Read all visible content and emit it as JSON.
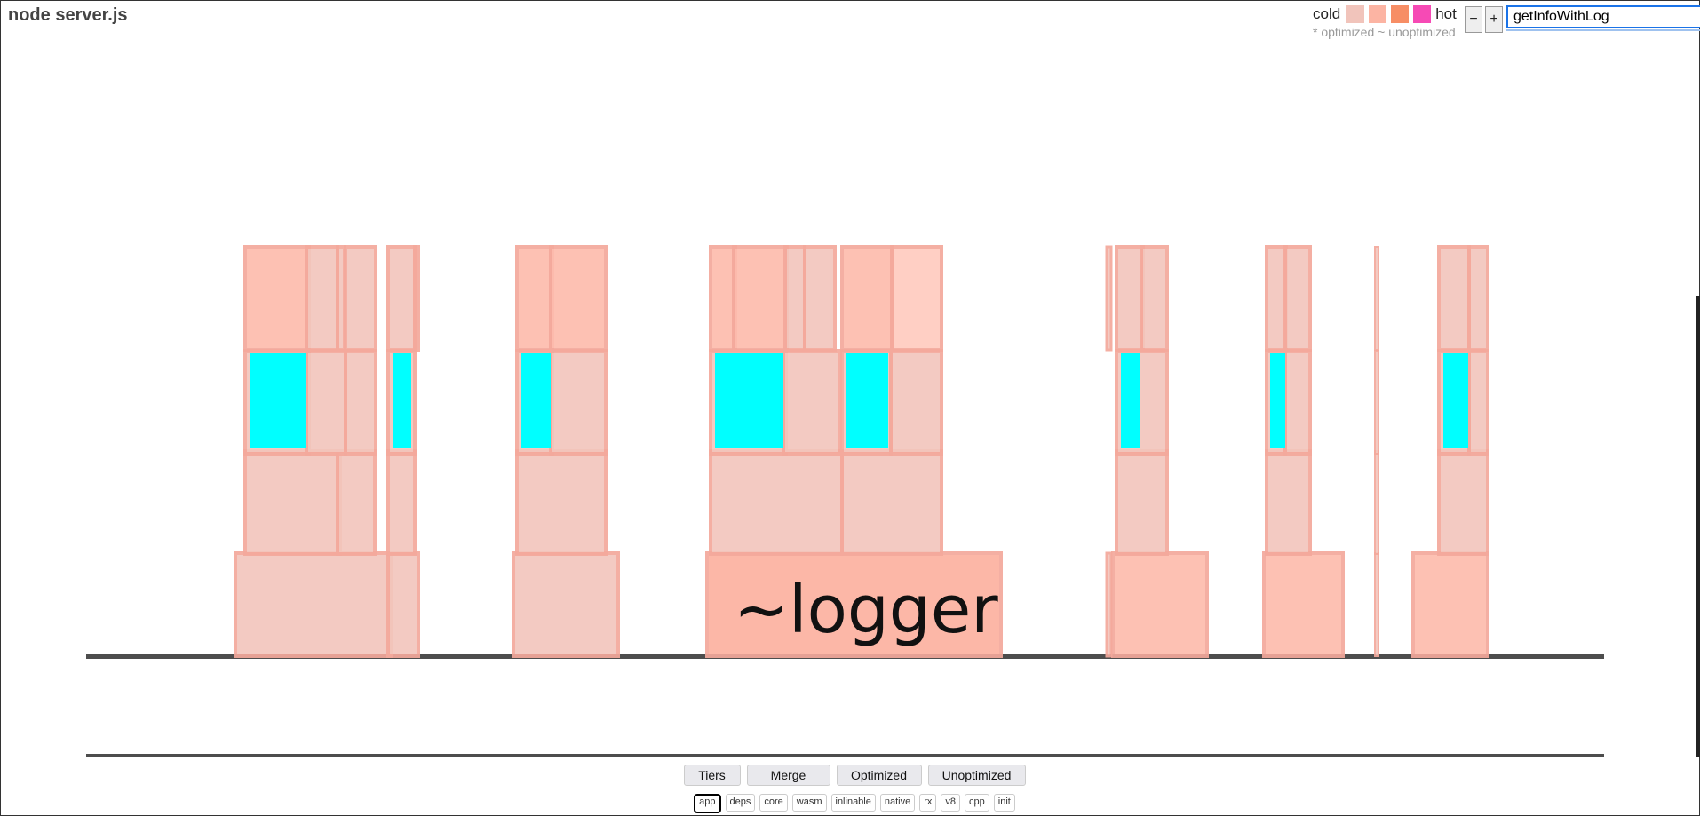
{
  "header": {
    "title": "node server.js"
  },
  "legend": {
    "cold_label": "cold",
    "hot_label": "hot",
    "subtitle": "* optimized ~ unoptimized",
    "swatches": [
      "#f1c4bb",
      "#fcb4a3",
      "#f78e65",
      "#f64ab5"
    ]
  },
  "zoom": {
    "out_label": "−",
    "in_label": "+"
  },
  "search": {
    "value": "getInfoWithLog",
    "match_color": "#00ffff"
  },
  "flame": {
    "hovered_frame_label": "~logger",
    "colors": {
      "cold": "#f2c6bd",
      "warm": "#fdbcad",
      "warmer": "#fcb1a0",
      "pale": "#ffcbbf",
      "border": "#f4a99c",
      "match": "#00ffff",
      "axis": "#4d4d4d"
    }
  },
  "tier_buttons": [
    {
      "name": "tiers-button",
      "label": "Tiers"
    },
    {
      "name": "merge-button",
      "label": "Merge"
    },
    {
      "name": "optimized-button",
      "label": "Optimized"
    },
    {
      "name": "unoptimized-button",
      "label": "Unoptimized"
    }
  ],
  "filters": [
    {
      "label": "app",
      "active": true
    },
    {
      "label": "deps",
      "active": false
    },
    {
      "label": "core",
      "active": false
    },
    {
      "label": "wasm",
      "active": false
    },
    {
      "label": "inlinable",
      "active": false
    },
    {
      "label": "native",
      "active": false
    },
    {
      "label": "rx",
      "active": false
    },
    {
      "label": "v8",
      "active": false
    },
    {
      "label": "cpp",
      "active": false
    },
    {
      "label": "init",
      "active": false
    }
  ]
}
